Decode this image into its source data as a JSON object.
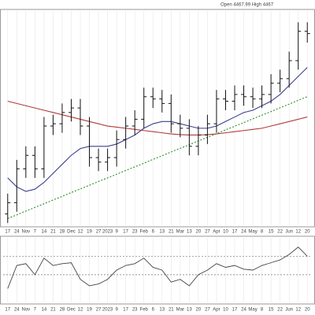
{
  "chart_data": {
    "type": "ohlc",
    "header": "Open 4467.99  High 4467",
    "categories": [
      "17",
      "24",
      "Nov",
      "7",
      "14",
      "21",
      "28",
      "Dec",
      "12",
      "19",
      "27",
      "2023",
      "9",
      "17",
      "23",
      "Feb",
      "6",
      "13",
      "21",
      "Mar",
      "13",
      "20",
      "27",
      "Apr",
      "10",
      "17",
      "24",
      "May",
      "8",
      "15",
      "22",
      "Jun",
      "12",
      "20"
    ],
    "open": [
      3600,
      3650,
      3800,
      3860,
      3800,
      3990,
      4000,
      4050,
      4070,
      3990,
      3850,
      3830,
      3850,
      3930,
      3990,
      4020,
      4120,
      4110,
      4090,
      4000,
      3980,
      3900,
      3950,
      4000,
      4110,
      4100,
      4130,
      4120,
      4110,
      4130,
      4180,
      4200,
      4280,
      4410
    ],
    "high": [
      3690,
      3840,
      3900,
      3900,
      4030,
      4040,
      4090,
      4110,
      4110,
      4030,
      3890,
      3890,
      3970,
      4030,
      4060,
      4160,
      4160,
      4150,
      4130,
      4040,
      4020,
      3990,
      4040,
      4150,
      4150,
      4170,
      4170,
      4160,
      4170,
      4220,
      4240,
      4320,
      4450,
      4450
    ],
    "low": [
      3560,
      3610,
      3760,
      3760,
      3760,
      3950,
      3960,
      4010,
      3950,
      3810,
      3790,
      3790,
      3810,
      3890,
      3950,
      3980,
      4070,
      4050,
      3960,
      3940,
      3860,
      3860,
      3910,
      3960,
      4060,
      4060,
      4080,
      4070,
      4070,
      4090,
      4140,
      4160,
      4240,
      4360
    ],
    "close": [
      3650,
      3800,
      3860,
      3800,
      3990,
      4000,
      4050,
      4070,
      3990,
      3850,
      3830,
      3850,
      3930,
      3990,
      4020,
      4120,
      4110,
      4090,
      4000,
      3980,
      3900,
      3950,
      4000,
      4110,
      4100,
      4130,
      4120,
      4110,
      4130,
      4180,
      4200,
      4280,
      4410,
      4400
    ],
    "bar_color": "#111111",
    "series": [
      {
        "color": "#3b3f8f",
        "values": [
          3760,
          3720,
          3700,
          3710,
          3740,
          3780,
          3820,
          3860,
          3890,
          3900,
          3900,
          3900,
          3910,
          3930,
          3950,
          3980,
          4000,
          4010,
          4010,
          4000,
          3990,
          3980,
          3980,
          3990,
          4010,
          4030,
          4050,
          4060,
          4080,
          4100,
          4130,
          4170,
          4210,
          4250
        ]
      },
      {
        "color": "#b03a3a",
        "values": [
          4100,
          4090,
          4080,
          4070,
          4060,
          4050,
          4040,
          4030,
          4020,
          4010,
          4000,
          3990,
          3985,
          3980,
          3975,
          3970,
          3965,
          3960,
          3955,
          3952,
          3950,
          3950,
          3952,
          3955,
          3960,
          3965,
          3970,
          3975,
          3980,
          3990,
          4000,
          4010,
          4020,
          4030
        ]
      },
      {
        "color": "#2e8b2e",
        "dashed": true,
        "values": [
          3580,
          3596,
          3613,
          3629,
          3645,
          3662,
          3678,
          3695,
          3711,
          3727,
          3744,
          3760,
          3776,
          3793,
          3809,
          3825,
          3842,
          3858,
          3875,
          3891,
          3907,
          3924,
          3940,
          3956,
          3973,
          3989,
          4005,
          4022,
          4038,
          4054,
          4071,
          4087,
          4104,
          4120
        ]
      }
    ],
    "ylim": [
      3550,
      4500
    ],
    "grid": true,
    "oscillator": {
      "color": "#444444",
      "values": [
        35,
        60,
        62,
        50,
        68,
        60,
        62,
        63,
        45,
        38,
        40,
        45,
        55,
        60,
        62,
        68,
        58,
        55,
        42,
        45,
        38,
        50,
        55,
        62,
        58,
        60,
        56,
        55,
        60,
        63,
        66,
        72,
        80,
        70
      ],
      "ylim": [
        20,
        90
      ],
      "levels": [
        50,
        70
      ]
    }
  }
}
